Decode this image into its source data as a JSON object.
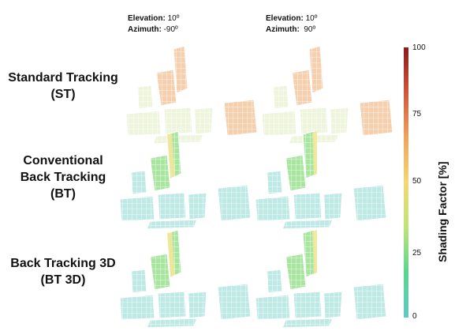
{
  "columns": [
    {
      "elevation_label": "Elevation:",
      "elevation_value": "10º",
      "azimuth_label": "Azimuth:",
      "azimuth_value": "-90º"
    },
    {
      "elevation_label": "Elevation:",
      "elevation_value": "10º",
      "azimuth_label": "Azimuth:",
      "azimuth_value": "  90º"
    }
  ],
  "rows": [
    {
      "label_lines": [
        "Standard Tracking",
        "(ST)"
      ]
    },
    {
      "label_lines": [
        "Conventional",
        "Back Tracking",
        "(BT)"
      ]
    },
    {
      "label_lines": [
        "Back Tracking 3D",
        "(BT 3D)"
      ]
    }
  ],
  "colorbar": {
    "title": "Shading Factor [%]",
    "ticks": [
      "100",
      "75",
      "50",
      "25",
      "0"
    ],
    "colors": [
      "#8b1a1a",
      "#d2553a",
      "#f0a35e",
      "#f4d774",
      "#bfe37a",
      "#58d68d",
      "#63c9c4"
    ]
  },
  "colors": {
    "st_fill": "#eef5dc",
    "st_warm": "#f6cfae",
    "bt_fill": "#bfe9e4",
    "bt_green": "#a8e6a0",
    "bt_yellow": "#f1e79a",
    "edge": "#ffffff"
  }
}
